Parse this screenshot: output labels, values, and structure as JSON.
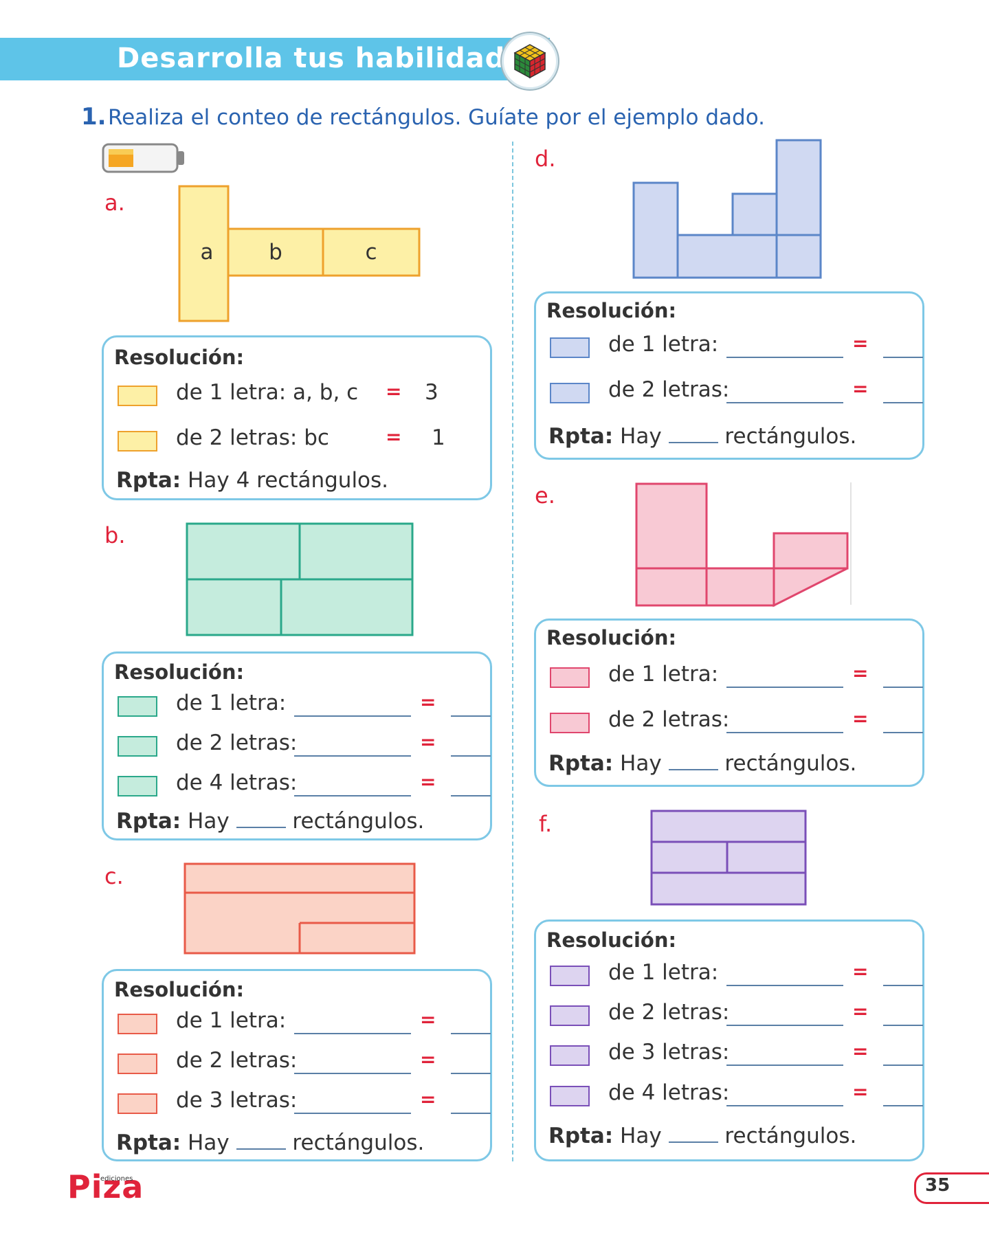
{
  "header": {
    "title": "Desarrolla tus habilidades",
    "badge_icon": "rubik-cube-icon"
  },
  "question": {
    "number": "1.",
    "text": "Realiza el conteo de rectángulos. Guíate por el ejemplo dado."
  },
  "battery_icon": "battery-low-icon",
  "colors": {
    "accent_blue": "#2a63b0",
    "banner": "#5ec4e8",
    "red": "#e0233a",
    "box_border": "#7ec8e6"
  },
  "sections": {
    "a": {
      "letter": "a.",
      "figure_labels": [
        "a",
        "b",
        "c"
      ],
      "res_title": "Resolución:",
      "rows": [
        {
          "label": "de 1 letra: a, b, c",
          "eq": "=",
          "answer": "3"
        },
        {
          "label": "de 2 letras: bc",
          "eq": "=",
          "answer": "1"
        }
      ],
      "rpta_bold": "Rpta:",
      "rpta_text": " Hay 4 rectángulos."
    },
    "b": {
      "letter": "b.",
      "res_title": "Resolución:",
      "rows": [
        {
          "label": "de 1 letra:",
          "eq": "="
        },
        {
          "label": "de 2 letras:",
          "eq": "="
        },
        {
          "label": "de 4 letras:",
          "eq": "="
        }
      ],
      "rpta_bold": "Rpta:",
      "rpta_pre": " Hay ",
      "rpta_post": " rectángulos."
    },
    "c": {
      "letter": "c.",
      "res_title": "Resolución:",
      "rows": [
        {
          "label": "de 1 letra:",
          "eq": "="
        },
        {
          "label": "de 2 letras:",
          "eq": "="
        },
        {
          "label": "de 3 letras:",
          "eq": "="
        }
      ],
      "rpta_bold": "Rpta:",
      "rpta_pre": " Hay ",
      "rpta_post": " rectángulos."
    },
    "d": {
      "letter": "d.",
      "res_title": "Resolución:",
      "rows": [
        {
          "label": "de 1 letra:",
          "eq": "="
        },
        {
          "label": "de 2 letras:",
          "eq": "="
        }
      ],
      "rpta_bold": "Rpta:",
      "rpta_pre": " Hay ",
      "rpta_post": " rectángulos."
    },
    "e": {
      "letter": "e.",
      "res_title": "Resolución:",
      "rows": [
        {
          "label": "de 1 letra:",
          "eq": "="
        },
        {
          "label": "de 2 letras:",
          "eq": "="
        }
      ],
      "rpta_bold": "Rpta:",
      "rpta_pre": " Hay ",
      "rpta_post": " rectángulos."
    },
    "f": {
      "letter": "f.",
      "res_title": "Resolución:",
      "rows": [
        {
          "label": "de 1 letra:",
          "eq": "="
        },
        {
          "label": "de 2 letras:",
          "eq": "="
        },
        {
          "label": "de 3 letras:",
          "eq": "="
        },
        {
          "label": "de 4 letras:",
          "eq": "="
        }
      ],
      "rpta_bold": "Rpta:",
      "rpta_pre": " Hay ",
      "rpta_post": " rectángulos."
    }
  },
  "footer": {
    "logo": "Piza",
    "logo_small": "ediciones",
    "page_number": "35"
  }
}
